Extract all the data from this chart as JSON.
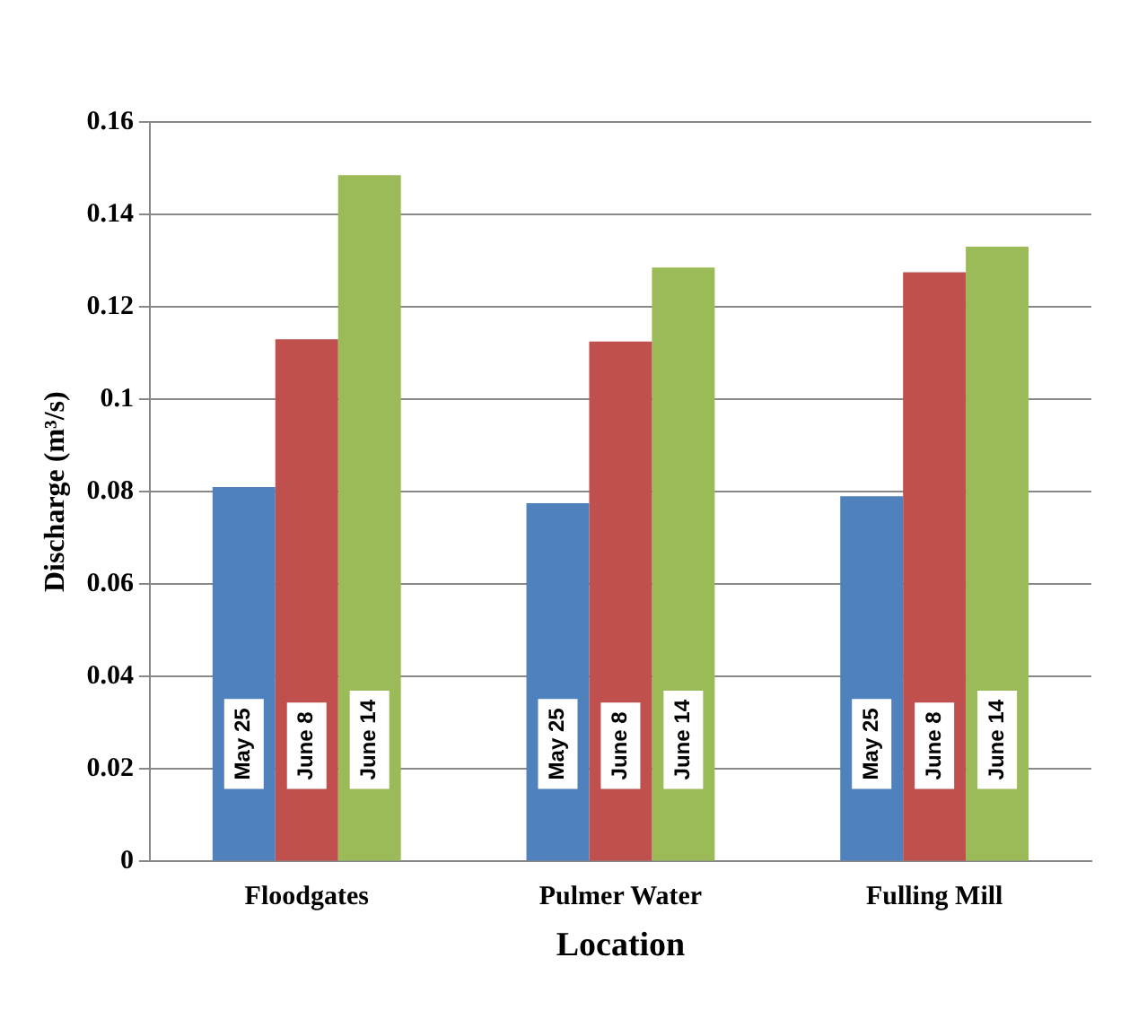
{
  "chart_data": {
    "type": "bar",
    "xlabel": "Location",
    "ylabel": "Discharge (m³/s)",
    "categories": [
      "Floodgates",
      "Pulmer Water",
      "Fulling Mill"
    ],
    "series": [
      {
        "name": "May 25",
        "color": "#4f81bd",
        "values": [
          0.081,
          0.0775,
          0.079
        ]
      },
      {
        "name": "June 8",
        "color": "#c0504d",
        "values": [
          0.113,
          0.1125,
          0.1275
        ]
      },
      {
        "name": "June 14",
        "color": "#9bbb59",
        "values": [
          0.1485,
          0.1285,
          0.133
        ]
      }
    ],
    "ylim": [
      0,
      0.16
    ],
    "yticks": [
      0,
      0.02,
      0.04,
      0.06,
      0.08,
      0.1,
      0.12,
      0.14,
      0.16
    ],
    "grid": "y",
    "legend": false
  }
}
